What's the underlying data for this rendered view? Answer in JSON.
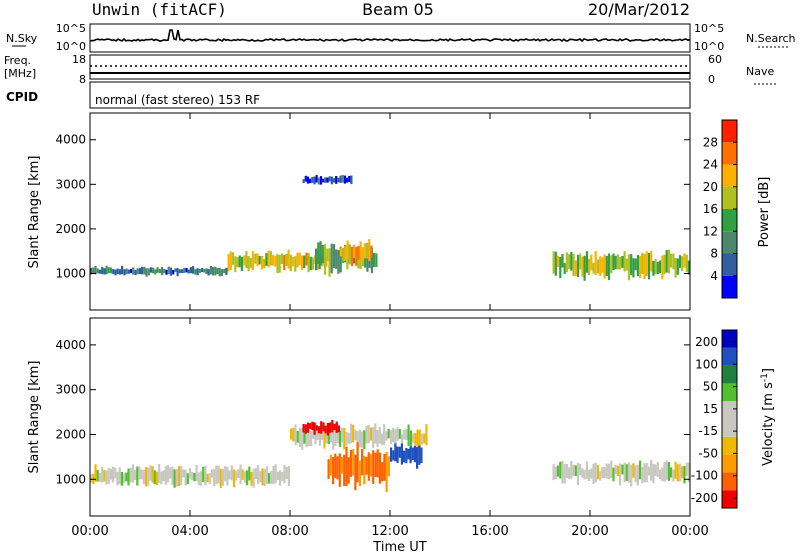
{
  "header": {
    "station": "Unwin (fitACF)",
    "beam": "Beam 05",
    "date": "20/Mar/2012"
  },
  "noise_panel": {
    "left_label": "N.Sky",
    "right_label": "N.Search",
    "left_ticks": [
      "10^5",
      "10^0"
    ],
    "right_ticks": [
      "10^5",
      "10^0"
    ]
  },
  "freq_panel": {
    "left_label_1": "Freq.",
    "left_label_2": "[MHz]",
    "right_label": "Nave",
    "left_ticks": [
      "18",
      "8"
    ],
    "right_ticks": [
      "60",
      "0"
    ]
  },
  "cpid_panel": {
    "label": "CPID",
    "text": "normal (fast stereo) 153 RF"
  },
  "x_axis": {
    "label": "Time UT",
    "tick_labels": [
      "00:00",
      "04:00",
      "08:00",
      "12:00",
      "16:00",
      "20:00",
      "00:00"
    ]
  },
  "colors": {
    "power_scale": [
      "#0000ff",
      "#3060a0",
      "#4a8a6a",
      "#30a040",
      "#b0c020",
      "#ffb000",
      "#ff7000",
      "#ff2000"
    ],
    "velocity_scale": [
      "#ee0000",
      "#ff6000",
      "#ff9a00",
      "#f0b800",
      "#c8c8c0",
      "#c8c8c0",
      "#50c030",
      "#208040",
      "#2050c0",
      "#0000c0"
    ]
  },
  "chart_data": [
    {
      "type": "heatmap",
      "title": "",
      "xlabel": "",
      "ylabel": "Slant Range [km]",
      "xlim": [
        0,
        24
      ],
      "ylim": [
        180,
        4600
      ],
      "y_tick_labels": [
        "1000",
        "2000",
        "3000",
        "4000"
      ],
      "colorbar": {
        "label": "Power [dB]",
        "tick_labels": [
          "4",
          "8",
          "12",
          "16",
          "20",
          "24",
          "28"
        ],
        "range": [
          0,
          32
        ]
      },
      "echo_regions": [
        {
          "t_start": 0.0,
          "t_end": 5.5,
          "r_start": 950,
          "r_end": 1150,
          "power": 8
        },
        {
          "t_start": 5.5,
          "t_end": 9.5,
          "r_start": 1050,
          "r_end": 1500,
          "power": 20
        },
        {
          "t_start": 9.0,
          "t_end": 11.5,
          "r_start": 1000,
          "r_end": 1700,
          "power": 14
        },
        {
          "t_start": 10.0,
          "t_end": 11.3,
          "r_start": 1200,
          "r_end": 1700,
          "power": 22
        },
        {
          "t_start": 18.5,
          "t_end": 24.0,
          "r_start": 900,
          "r_end": 1500,
          "power": 18
        },
        {
          "t_start": 8.5,
          "t_end": 10.5,
          "r_start": 3000,
          "r_end": 3200,
          "power": 4
        }
      ]
    },
    {
      "type": "heatmap",
      "title": "",
      "xlabel": "Time UT",
      "ylabel": "Slant Range [km]",
      "xlim": [
        0,
        24
      ],
      "ylim": [
        180,
        4600
      ],
      "y_tick_labels": [
        "1000",
        "2000",
        "3000",
        "4000"
      ],
      "colorbar": {
        "label": "Velocity [m s^-1]",
        "tick_labels": [
          "200",
          "100",
          "50",
          "15",
          "-15",
          "-50",
          "-100",
          "-200"
        ],
        "range": [
          -250,
          250
        ]
      },
      "echo_regions": [
        {
          "t_start": 0.0,
          "t_end": 8.0,
          "r_start": 850,
          "r_end": 1300,
          "velocity": 0
        },
        {
          "t_start": 8.0,
          "t_end": 13.5,
          "r_start": 1700,
          "r_end": 2200,
          "velocity": 0
        },
        {
          "t_start": 9.5,
          "t_end": 12.0,
          "r_start": 800,
          "r_end": 1700,
          "velocity": -60
        },
        {
          "t_start": 12.0,
          "t_end": 13.3,
          "r_start": 1300,
          "r_end": 1800,
          "velocity": 120
        },
        {
          "t_start": 18.5,
          "t_end": 24.0,
          "r_start": 900,
          "r_end": 1400,
          "velocity": 0
        },
        {
          "t_start": 8.5,
          "t_end": 10.0,
          "r_start": 2000,
          "r_end": 2300,
          "velocity": -120
        }
      ]
    }
  ]
}
